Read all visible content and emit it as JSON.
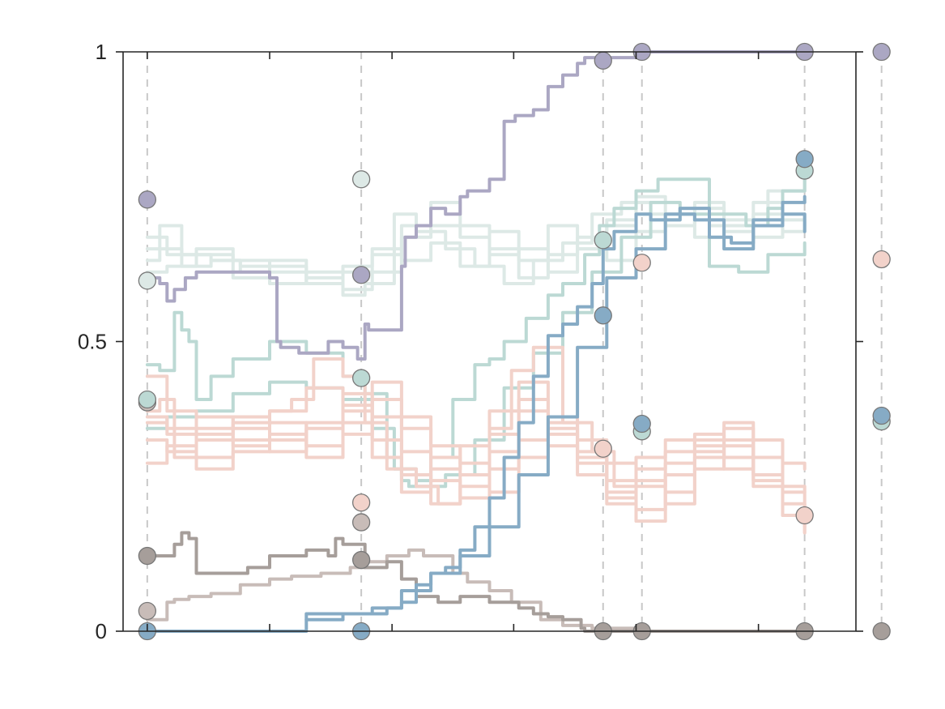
{
  "chart_data": {
    "type": "line",
    "title": "",
    "xlabel": "",
    "ylabel": "",
    "xlim": [
      0,
      1
    ],
    "ylim": [
      0,
      1
    ],
    "y_ticks": [
      {
        "value": 0,
        "label": "0"
      },
      {
        "value": 0.5,
        "label": "0.5"
      },
      {
        "value": 1,
        "label": "1"
      }
    ],
    "x_ticks": [
      0.033,
      0.2,
      0.367,
      0.533,
      0.7,
      0.867
    ],
    "grid": false,
    "reference_lines_x": [
      0.033,
      0.325,
      0.655,
      0.708,
      0.93,
      1.035
    ],
    "colors": {
      "purple": "#aba7c3",
      "teal": "#bcd9d4",
      "light_teal": "#dde9e6",
      "pink": "#f2d2ca",
      "blue": "#86abc5",
      "dark_gray": "#a69e9a",
      "light_gray": "#c8bcb8",
      "axis": "#262626",
      "refline": "#c8c8c8",
      "marker_edge": "#777777"
    },
    "series": [
      {
        "color": "purple",
        "x": [
          0.033,
          0.045,
          0.05,
          0.06,
          0.07,
          0.085,
          0.1,
          0.13,
          0.16,
          0.2,
          0.21,
          0.215,
          0.24,
          0.28,
          0.3,
          0.32,
          0.33,
          0.335,
          0.36,
          0.38,
          0.385,
          0.4,
          0.42,
          0.44,
          0.46,
          0.47,
          0.5,
          0.52,
          0.535,
          0.55,
          0.56,
          0.58,
          0.6,
          0.62,
          0.63,
          0.64,
          0.66,
          0.7,
          0.76,
          0.8,
          0.9,
          0.93
        ],
        "y": [
          0.61,
          0.61,
          0.6,
          0.57,
          0.59,
          0.61,
          0.62,
          0.62,
          0.62,
          0.61,
          0.5,
          0.49,
          0.48,
          0.5,
          0.49,
          0.47,
          0.53,
          0.52,
          0.52,
          0.63,
          0.68,
          0.7,
          0.73,
          0.72,
          0.75,
          0.76,
          0.78,
          0.88,
          0.89,
          0.89,
          0.9,
          0.94,
          0.96,
          0.98,
          0.99,
          0.99,
          0.99,
          1,
          1,
          1,
          1,
          1
        ]
      },
      {
        "color": "dark_gray",
        "x": [
          0.033,
          0.06,
          0.07,
          0.08,
          0.09,
          0.1,
          0.14,
          0.17,
          0.2,
          0.25,
          0.28,
          0.29,
          0.3,
          0.33,
          0.36,
          0.38,
          0.4,
          0.43,
          0.46,
          0.5,
          0.54,
          0.56,
          0.58,
          0.6,
          0.625,
          0.63,
          0.7,
          0.93
        ],
        "y": [
          0.13,
          0.13,
          0.15,
          0.17,
          0.16,
          0.1,
          0.1,
          0.11,
          0.13,
          0.14,
          0.13,
          0.16,
          0.15,
          0.11,
          0.12,
          0.09,
          0.06,
          0.05,
          0.06,
          0.05,
          0.04,
          0.03,
          0.025,
          0.02,
          0.005,
          0,
          0,
          0
        ]
      },
      {
        "color": "light_gray",
        "x": [
          0.033,
          0.05,
          0.06,
          0.07,
          0.09,
          0.12,
          0.16,
          0.2,
          0.23,
          0.27,
          0.31,
          0.33,
          0.36,
          0.39,
          0.41,
          0.43,
          0.45,
          0.47,
          0.5,
          0.53,
          0.57,
          0.6,
          0.64,
          0.7,
          0.93
        ],
        "y": [
          0.02,
          0.02,
          0.05,
          0.055,
          0.06,
          0.065,
          0.08,
          0.09,
          0.095,
          0.1,
          0.11,
          0.12,
          0.13,
          0.14,
          0.13,
          0.13,
          0.1,
          0.085,
          0.07,
          0.05,
          0.02,
          0.01,
          0.005,
          0,
          0
        ]
      },
      {
        "color": "blue",
        "x": [
          0.033,
          0.1,
          0.2,
          0.24,
          0.25,
          0.3,
          0.33,
          0.36,
          0.38,
          0.4,
          0.42,
          0.44,
          0.46,
          0.48,
          0.5,
          0.52,
          0.54,
          0.56,
          0.58,
          0.6,
          0.62,
          0.64,
          0.655,
          0.67,
          0.7,
          0.72,
          0.74,
          0.76,
          0.8,
          0.83,
          0.86,
          0.9,
          0.93
        ],
        "y": [
          0,
          0,
          0,
          0,
          0.03,
          0.03,
          0.03,
          0.04,
          0.05,
          0.08,
          0.1,
          0.11,
          0.14,
          0.18,
          0.23,
          0.3,
          0.36,
          0.44,
          0.51,
          0.53,
          0.56,
          0.6,
          0.66,
          0.69,
          0.72,
          0.71,
          0.71,
          0.73,
          0.68,
          0.67,
          0.71,
          0.72,
          0.69
        ]
      },
      {
        "color": "blue",
        "x": [
          0.25,
          0.3,
          0.34,
          0.38,
          0.42,
          0.46,
          0.5,
          0.54,
          0.58,
          0.62,
          0.66,
          0.7,
          0.74,
          0.78,
          0.82,
          0.86,
          0.9,
          0.93
        ],
        "y": [
          0.02,
          0.03,
          0.04,
          0.07,
          0.1,
          0.13,
          0.18,
          0.27,
          0.37,
          0.49,
          0.61,
          0.66,
          0.72,
          0.71,
          0.66,
          0.7,
          0.74,
          0.75
        ]
      },
      {
        "color": "teal",
        "x": [
          0.033,
          0.04,
          0.05,
          0.07,
          0.08,
          0.09,
          0.1,
          0.12,
          0.15,
          0.2,
          0.25,
          0.3,
          0.33,
          0.36,
          0.38,
          0.39,
          0.4,
          0.42,
          0.45,
          0.48,
          0.5,
          0.52,
          0.55,
          0.58,
          0.6,
          0.63,
          0.65,
          0.67,
          0.7,
          0.73,
          0.76,
          0.8,
          0.85,
          0.88,
          0.9,
          0.93
        ],
        "y": [
          0.46,
          0.46,
          0.45,
          0.55,
          0.52,
          0.5,
          0.4,
          0.44,
          0.47,
          0.5,
          0.48,
          0.44,
          0.41,
          0.3,
          0.26,
          0.25,
          0.26,
          0.3,
          0.4,
          0.46,
          0.47,
          0.5,
          0.54,
          0.58,
          0.6,
          0.65,
          0.7,
          0.73,
          0.76,
          0.78,
          0.78,
          0.72,
          0.7,
          0.73,
          0.76,
          0.8
        ]
      },
      {
        "color": "teal",
        "x": [
          0.033,
          0.06,
          0.1,
          0.15,
          0.2,
          0.25,
          0.3,
          0.34,
          0.37,
          0.4,
          0.44,
          0.48,
          0.52,
          0.56,
          0.6,
          0.64,
          0.68,
          0.72,
          0.76,
          0.8,
          0.84,
          0.88,
          0.93
        ],
        "y": [
          0.35,
          0.37,
          0.38,
          0.41,
          0.43,
          0.42,
          0.4,
          0.35,
          0.28,
          0.25,
          0.27,
          0.33,
          0.42,
          0.48,
          0.55,
          0.62,
          0.68,
          0.74,
          0.72,
          0.63,
          0.62,
          0.65,
          0.67
        ]
      },
      {
        "color": "light_teal",
        "x": [
          0.033,
          0.05,
          0.08,
          0.12,
          0.16,
          0.2,
          0.25,
          0.3,
          0.33,
          0.37,
          0.4,
          0.44,
          0.48,
          0.52,
          0.56,
          0.6,
          0.64,
          0.68,
          0.72,
          0.76,
          0.8,
          0.84,
          0.88,
          0.93
        ],
        "y": [
          0.66,
          0.7,
          0.65,
          0.64,
          0.63,
          0.62,
          0.6,
          0.58,
          0.6,
          0.72,
          0.69,
          0.66,
          0.63,
          0.6,
          0.64,
          0.67,
          0.72,
          0.74,
          0.71,
          0.73,
          0.7,
          0.7,
          0.76,
          0.8
        ]
      },
      {
        "color": "light_teal",
        "x": [
          0.033,
          0.05,
          0.08,
          0.12,
          0.16,
          0.2,
          0.25,
          0.3,
          0.34,
          0.38,
          0.42,
          0.46,
          0.5,
          0.54,
          0.58,
          0.62,
          0.66,
          0.7,
          0.74,
          0.78,
          0.82,
          0.86,
          0.9,
          0.93
        ],
        "y": [
          0.64,
          0.66,
          0.63,
          0.64,
          0.62,
          0.63,
          0.61,
          0.62,
          0.65,
          0.68,
          0.7,
          0.68,
          0.65,
          0.66,
          0.62,
          0.66,
          0.7,
          0.72,
          0.7,
          0.73,
          0.69,
          0.72,
          0.71,
          0.7
        ]
      },
      {
        "color": "light_teal",
        "x": [
          0.033,
          0.06,
          0.1,
          0.15,
          0.2,
          0.25,
          0.3,
          0.34,
          0.38,
          0.42,
          0.46,
          0.5,
          0.54,
          0.58,
          0.62,
          0.66,
          0.7,
          0.74,
          0.78,
          0.82,
          0.86,
          0.9,
          0.93
        ],
        "y": [
          0.62,
          0.63,
          0.65,
          0.61,
          0.64,
          0.6,
          0.63,
          0.66,
          0.64,
          0.67,
          0.63,
          0.69,
          0.61,
          0.65,
          0.68,
          0.64,
          0.69,
          0.72,
          0.68,
          0.7,
          0.74,
          0.69,
          0.72
        ]
      },
      {
        "color": "light_teal",
        "x": [
          0.033,
          0.06,
          0.1,
          0.15,
          0.2,
          0.25,
          0.3,
          0.34,
          0.38,
          0.42,
          0.46,
          0.5,
          0.54,
          0.58,
          0.62,
          0.66,
          0.7,
          0.74,
          0.78,
          0.82,
          0.86,
          0.9,
          0.93
        ],
        "y": [
          0.68,
          0.65,
          0.66,
          0.64,
          0.6,
          0.62,
          0.59,
          0.62,
          0.7,
          0.74,
          0.7,
          0.66,
          0.64,
          0.7,
          0.66,
          0.71,
          0.75,
          0.7,
          0.74,
          0.71,
          0.68,
          0.76,
          0.78
        ]
      },
      {
        "color": "pink",
        "x": [
          0.033,
          0.05,
          0.07,
          0.1,
          0.15,
          0.2,
          0.23,
          0.26,
          0.3,
          0.33,
          0.36,
          0.4,
          0.43,
          0.46,
          0.5,
          0.53,
          0.56,
          0.6,
          0.64,
          0.67,
          0.7,
          0.74,
          0.78,
          0.82,
          0.86,
          0.9,
          0.93
        ],
        "y": [
          0.38,
          0.4,
          0.3,
          0.33,
          0.37,
          0.38,
          0.4,
          0.47,
          0.44,
          0.36,
          0.28,
          0.25,
          0.22,
          0.27,
          0.35,
          0.45,
          0.49,
          0.36,
          0.31,
          0.25,
          0.3,
          0.33,
          0.32,
          0.35,
          0.26,
          0.2,
          0.18
        ]
      },
      {
        "color": "pink",
        "x": [
          0.033,
          0.06,
          0.1,
          0.15,
          0.2,
          0.25,
          0.3,
          0.34,
          0.38,
          0.42,
          0.46,
          0.5,
          0.54,
          0.58,
          0.62,
          0.66,
          0.7,
          0.74,
          0.78,
          0.82,
          0.86,
          0.9,
          0.93
        ],
        "y": [
          0.36,
          0.34,
          0.37,
          0.35,
          0.38,
          0.42,
          0.39,
          0.33,
          0.27,
          0.22,
          0.25,
          0.31,
          0.38,
          0.34,
          0.29,
          0.24,
          0.28,
          0.31,
          0.34,
          0.3,
          0.27,
          0.25,
          0.24
        ]
      },
      {
        "color": "pink",
        "x": [
          0.033,
          0.06,
          0.1,
          0.15,
          0.2,
          0.25,
          0.3,
          0.34,
          0.38,
          0.42,
          0.46,
          0.5,
          0.54,
          0.58,
          0.62,
          0.66,
          0.7,
          0.74,
          0.78,
          0.82,
          0.86,
          0.9,
          0.93
        ],
        "y": [
          0.33,
          0.31,
          0.34,
          0.36,
          0.33,
          0.35,
          0.41,
          0.37,
          0.31,
          0.26,
          0.23,
          0.28,
          0.33,
          0.35,
          0.3,
          0.26,
          0.21,
          0.27,
          0.33,
          0.36,
          0.3,
          0.22,
          0.2
        ]
      },
      {
        "color": "pink",
        "x": [
          0.033,
          0.06,
          0.1,
          0.15,
          0.2,
          0.25,
          0.3,
          0.34,
          0.38,
          0.42,
          0.46,
          0.5,
          0.54,
          0.58,
          0.62,
          0.66,
          0.7,
          0.74,
          0.78,
          0.82,
          0.86,
          0.9,
          0.93
        ],
        "y": [
          0.29,
          0.32,
          0.3,
          0.33,
          0.31,
          0.36,
          0.34,
          0.4,
          0.35,
          0.3,
          0.27,
          0.24,
          0.3,
          0.36,
          0.33,
          0.29,
          0.25,
          0.29,
          0.31,
          0.28,
          0.33,
          0.29,
          0.28
        ]
      },
      {
        "color": "pink",
        "x": [
          0.033,
          0.06,
          0.1,
          0.15,
          0.2,
          0.25,
          0.3,
          0.34,
          0.38,
          0.42,
          0.46,
          0.5,
          0.54,
          0.58,
          0.62,
          0.66,
          0.7,
          0.74,
          0.78,
          0.82,
          0.86,
          0.9,
          0.93
        ],
        "y": [
          0.44,
          0.38,
          0.35,
          0.32,
          0.36,
          0.3,
          0.38,
          0.43,
          0.37,
          0.32,
          0.29,
          0.34,
          0.4,
          0.32,
          0.27,
          0.22,
          0.26,
          0.22,
          0.28,
          0.33,
          0.27,
          0.24,
          0.17
        ]
      },
      {
        "color": "pink",
        "x": [
          0.033,
          0.06,
          0.1,
          0.15,
          0.2,
          0.25,
          0.3,
          0.34,
          0.38,
          0.42,
          0.46,
          0.5,
          0.54,
          0.58,
          0.62,
          0.66,
          0.7,
          0.74,
          0.78,
          0.82,
          0.86,
          0.9,
          0.93
        ],
        "y": [
          0.37,
          0.35,
          0.28,
          0.31,
          0.34,
          0.32,
          0.36,
          0.3,
          0.24,
          0.28,
          0.32,
          0.38,
          0.43,
          0.37,
          0.31,
          0.23,
          0.19,
          0.24,
          0.3,
          0.32,
          0.25,
          0.2,
          0.17
        ]
      }
    ],
    "markers": [
      {
        "x": 0.033,
        "y": 0.745,
        "color": "purple"
      },
      {
        "x": 0.033,
        "y": 0.605,
        "color": "light_teal"
      },
      {
        "x": 0.033,
        "y": 0.395,
        "color": "light_gray"
      },
      {
        "x": 0.033,
        "y": 0.4,
        "color": "teal"
      },
      {
        "x": 0.033,
        "y": 0.13,
        "color": "dark_gray"
      },
      {
        "x": 0.033,
        "y": 0.035,
        "color": "light_gray"
      },
      {
        "x": 0.033,
        "y": 0.0,
        "color": "blue"
      },
      {
        "x": 0.325,
        "y": 0.78,
        "color": "light_teal"
      },
      {
        "x": 0.325,
        "y": 0.615,
        "color": "purple"
      },
      {
        "x": 0.325,
        "y": 0.437,
        "color": "teal"
      },
      {
        "x": 0.325,
        "y": 0.222,
        "color": "pink"
      },
      {
        "x": 0.325,
        "y": 0.188,
        "color": "light_gray"
      },
      {
        "x": 0.325,
        "y": 0.123,
        "color": "dark_gray"
      },
      {
        "x": 0.325,
        "y": 0.0,
        "color": "blue"
      },
      {
        "x": 0.655,
        "y": 0.985,
        "color": "purple"
      },
      {
        "x": 0.655,
        "y": 0.675,
        "color": "teal"
      },
      {
        "x": 0.655,
        "y": 0.545,
        "color": "blue"
      },
      {
        "x": 0.655,
        "y": 0.315,
        "color": "pink"
      },
      {
        "x": 0.655,
        "y": 0.0,
        "color": "dark_gray"
      },
      {
        "x": 0.708,
        "y": 1.0,
        "color": "purple"
      },
      {
        "x": 0.708,
        "y": 0.636,
        "color": "pink"
      },
      {
        "x": 0.708,
        "y": 0.345,
        "color": "teal"
      },
      {
        "x": 0.708,
        "y": 0.358,
        "color": "blue"
      },
      {
        "x": 0.708,
        "y": 0.0,
        "color": "dark_gray"
      },
      {
        "x": 0.93,
        "y": 1.0,
        "color": "purple"
      },
      {
        "x": 0.93,
        "y": 0.795,
        "color": "teal"
      },
      {
        "x": 0.93,
        "y": 0.815,
        "color": "blue"
      },
      {
        "x": 0.93,
        "y": 0.2,
        "color": "pink"
      },
      {
        "x": 0.93,
        "y": 0.0,
        "color": "dark_gray"
      },
      {
        "x": 1.035,
        "y": 1.0,
        "color": "purple"
      },
      {
        "x": 1.035,
        "y": 0.642,
        "color": "pink"
      },
      {
        "x": 1.035,
        "y": 0.362,
        "color": "teal"
      },
      {
        "x": 1.035,
        "y": 0.372,
        "color": "blue"
      },
      {
        "x": 1.035,
        "y": 0.0,
        "color": "dark_gray"
      }
    ]
  }
}
